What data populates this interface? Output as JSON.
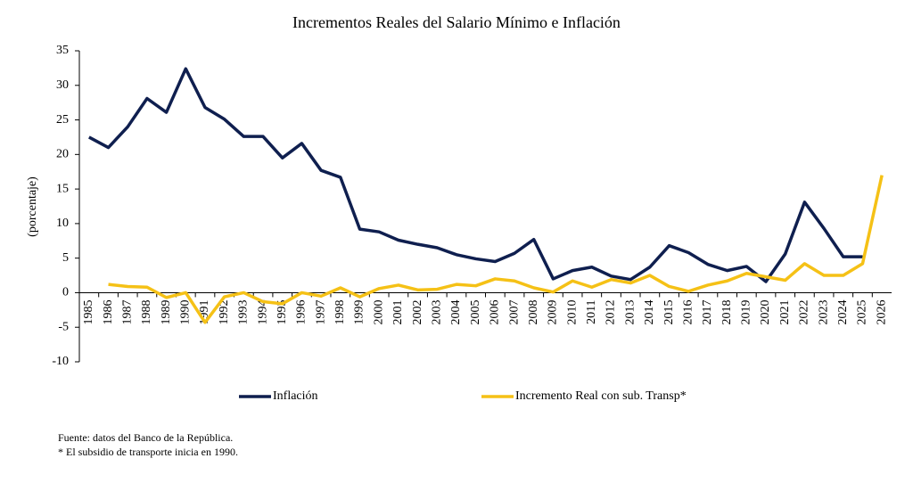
{
  "chart_data": {
    "type": "line",
    "title": "Incrementos Reales del Salario Mínimo e Inflación",
    "y_label": "(porcentaje)",
    "categories": [
      "1985",
      "1986",
      "1987",
      "1988",
      "1989",
      "1990",
      "1991",
      "1992",
      "1993",
      "1994",
      "1995",
      "1996",
      "1997",
      "1998",
      "1999",
      "2000",
      "2001",
      "2002",
      "2003",
      "2004",
      "2005",
      "2006",
      "2007",
      "2008",
      "2009",
      "2010",
      "2011",
      "2012",
      "2013",
      "2014",
      "2015",
      "2016",
      "2017",
      "2018",
      "2019",
      "2020",
      "2021",
      "2022",
      "2023",
      "2024",
      "2025",
      "2026"
    ],
    "series": [
      {
        "name": "Inflación",
        "color": "#0f1f4f",
        "values": [
          22.5,
          21.0,
          24.0,
          28.1,
          26.1,
          32.4,
          26.8,
          25.1,
          22.6,
          22.6,
          19.5,
          21.6,
          17.7,
          16.7,
          9.2,
          8.8,
          7.6,
          7.0,
          6.5,
          5.5,
          4.9,
          4.5,
          5.7,
          7.7,
          2.0,
          3.2,
          3.7,
          2.4,
          1.9,
          3.7,
          6.8,
          5.8,
          4.1,
          3.2,
          3.8,
          1.6,
          5.6,
          13.1,
          9.3,
          5.2,
          5.2,
          null
        ]
      },
      {
        "name": "Incremento Real con sub. Transp*",
        "color": "#f5c116",
        "values": [
          null,
          1.2,
          0.9,
          0.8,
          -0.7,
          0.0,
          -4.3,
          -0.6,
          0.0,
          -1.3,
          -1.6,
          0.0,
          -0.5,
          0.7,
          -0.6,
          0.6,
          1.1,
          0.4,
          0.5,
          1.2,
          1.0,
          2.0,
          1.7,
          0.7,
          0.1,
          1.7,
          0.8,
          1.9,
          1.4,
          2.5,
          0.9,
          0.2,
          1.1,
          1.7,
          2.8,
          2.3,
          1.8,
          4.2,
          2.5,
          2.5,
          4.2,
          17.0
        ]
      }
    ],
    "ylim": [
      -10,
      35
    ],
    "yticks": [
      -10,
      -5,
      0,
      5,
      10,
      15,
      20,
      25,
      30,
      35
    ],
    "grid": false,
    "legend": "bottom",
    "notes": [
      "Fuente: datos del Banco de la República.",
      "* El subsidio de transporte inicia en 1990."
    ]
  }
}
